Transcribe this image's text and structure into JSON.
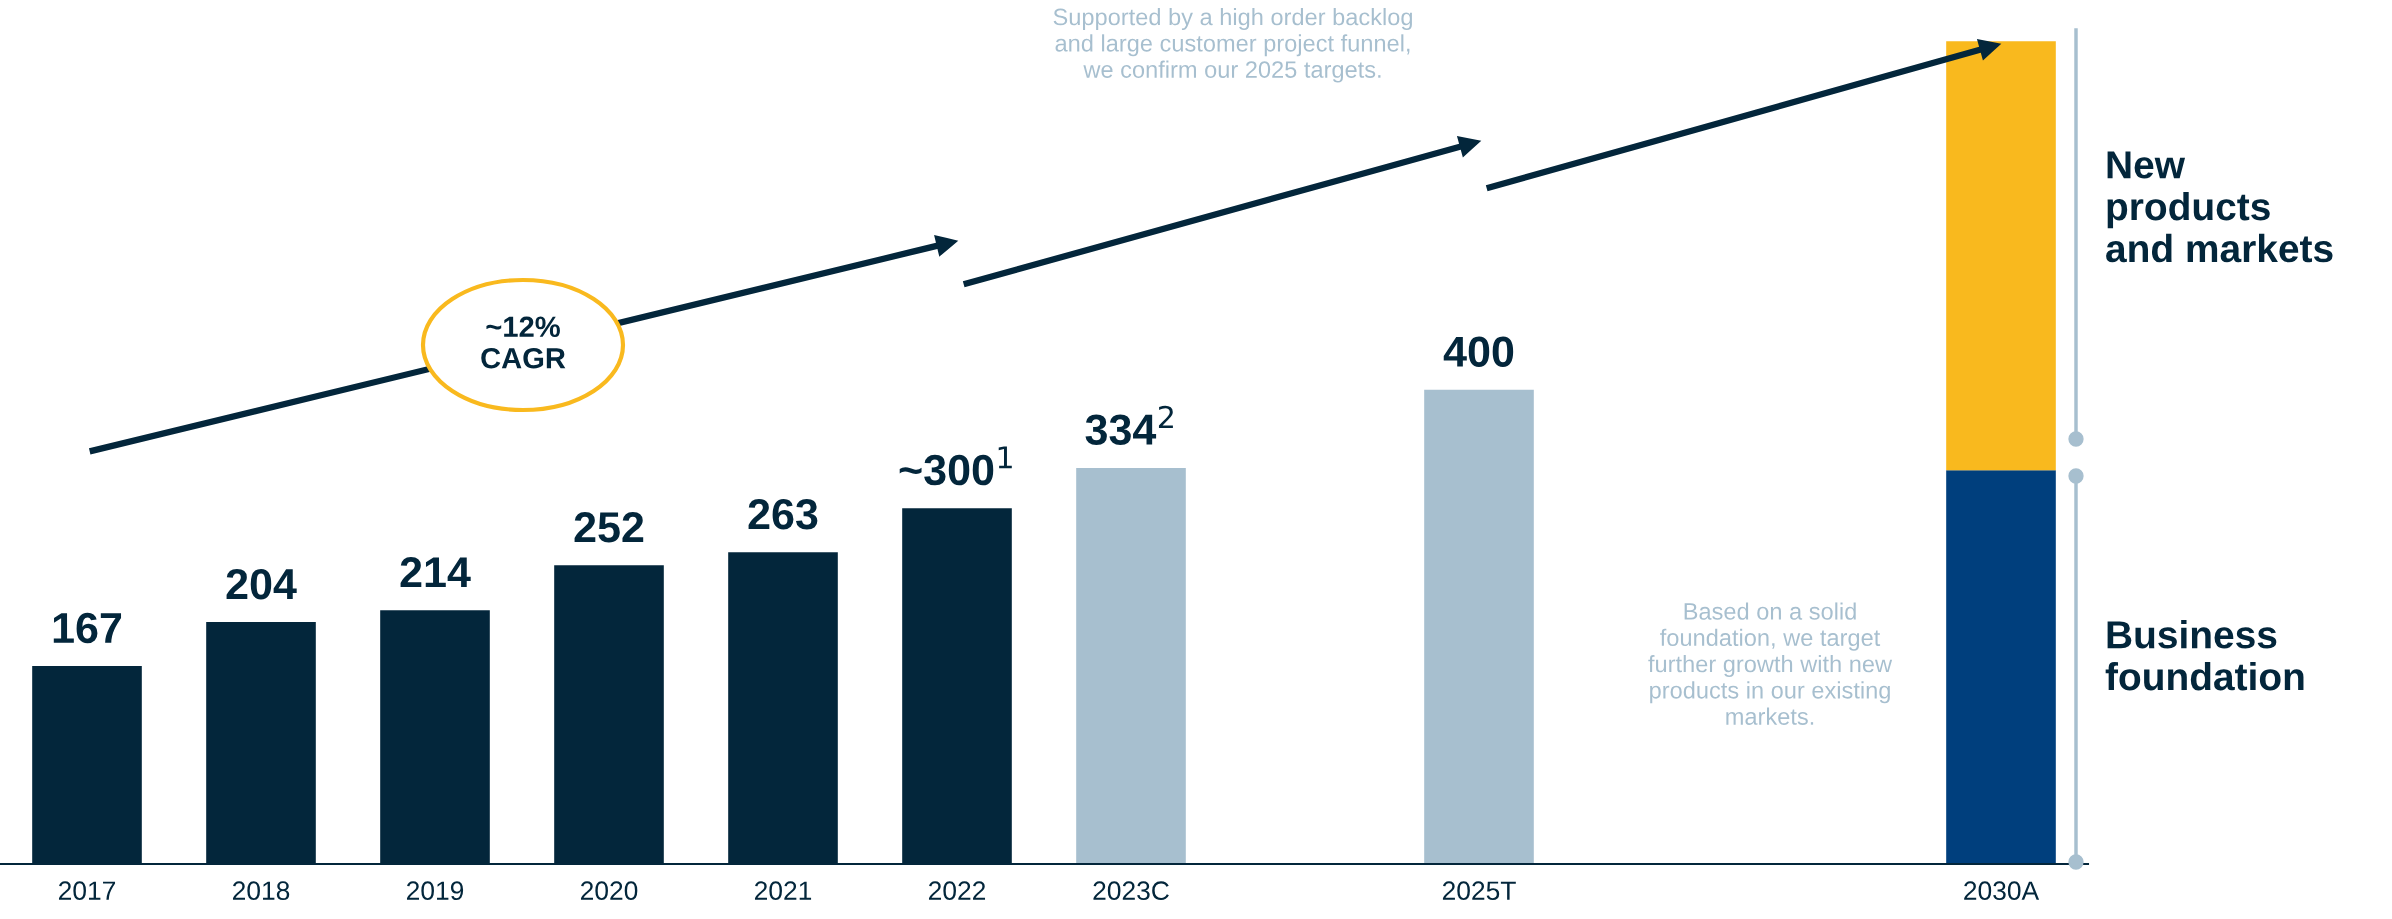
{
  "chart_data": {
    "type": "bar",
    "stacked": true,
    "categories": [
      "2017",
      "2018",
      "2019",
      "2020",
      "2021",
      "2022",
      "2023C",
      null,
      "2025T",
      null,
      null,
      "2030A"
    ],
    "series": [
      {
        "values": [
          167,
          204,
          214,
          252,
          263,
          300,
          334,
          null,
          400,
          null,
          null,
          332
        ],
        "colors": [
          "#03263b",
          "#03263b",
          "#03263b",
          "#03263b",
          "#03263b",
          "#03263b",
          "#a7bfcf",
          null,
          "#a7bfcf",
          null,
          null,
          "#003f7d"
        ],
        "value_labels": [
          "167",
          "204",
          "214",
          "252",
          "263",
          "~300$^{1}$",
          "334$^{2}$",
          null,
          "400",
          null,
          null,
          null
        ]
      },
      {
        "values": [
          null,
          null,
          null,
          null,
          null,
          null,
          null,
          null,
          null,
          null,
          null,
          362
        ],
        "colors": [
          null,
          null,
          null,
          null,
          null,
          null,
          null,
          null,
          null,
          null,
          null,
          "#f9b91e"
        ]
      }
    ],
    "grid": false,
    "legend": false,
    "annotations": [
      "Supported by a high order backlog\nand large customer project funnel,\nwe confirm our 2025 targets.",
      "Based on a solid\nfoundation, we target\nfurther growth with new\nproducts in our existing\nmarkets.",
      "~12%\nCAGR",
      "New\nproducts\nand markets",
      "Business\nfoundation"
    ]
  }
}
